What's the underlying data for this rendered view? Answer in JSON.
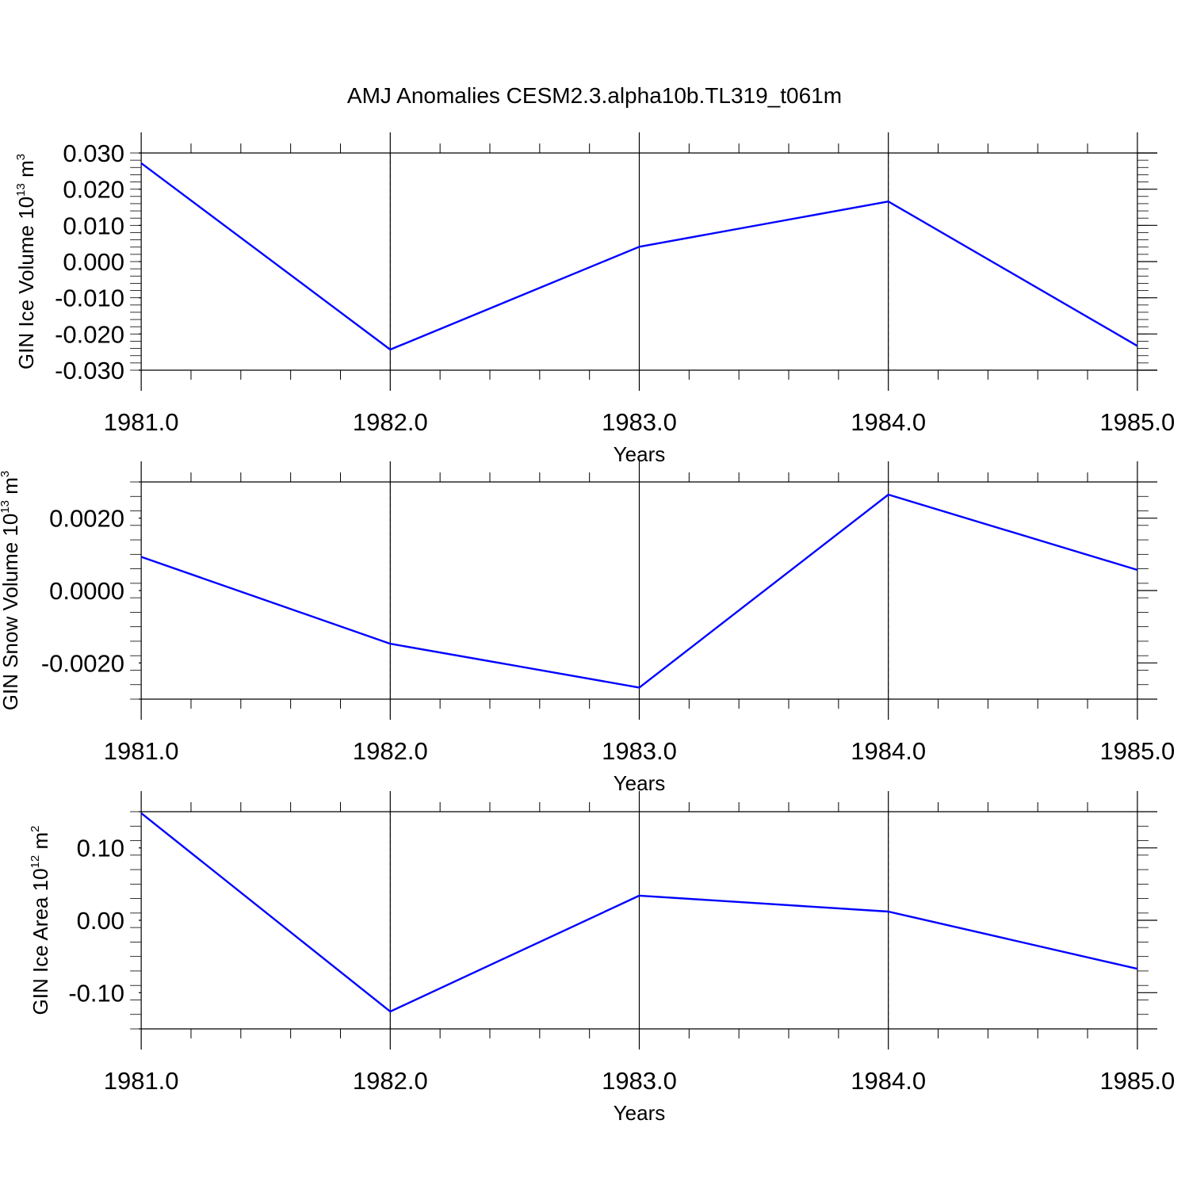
{
  "title": "AMJ Anomalies CESM2.3.alpha10b.TL319_t061m",
  "colors": {
    "series": "#0000ff",
    "axis": "#000000",
    "grid": "#808080"
  },
  "chart_data": [
    {
      "type": "line",
      "title": "",
      "xlabel": "Years",
      "ylabel": {
        "text": "GIN Ice Volume 10",
        "sup": "13",
        "unit": " m",
        "unit_sup": "3"
      },
      "x": [
        1981,
        1982,
        1983,
        1984,
        1985
      ],
      "xlim": [
        1980.99,
        1985.08
      ],
      "xticks": [
        1981,
        1982,
        1983,
        1984,
        1985
      ],
      "xtick_labels": [
        "1981.0",
        "1982.0",
        "1983.0",
        "1984.0",
        "1985.0"
      ],
      "ylim": [
        -0.03,
        0.03
      ],
      "yticks": [
        0.03,
        0.02,
        0.01,
        0.0,
        -0.01,
        -0.02,
        -0.03
      ],
      "ytick_labels": [
        "0.030",
        "0.020",
        "0.010",
        "0.000",
        "-0.010",
        "-0.020",
        "-0.030"
      ],
      "grid": "vertical dashed",
      "series": [
        {
          "values": [
            0.0272,
            -0.0243,
            0.0041,
            0.0166,
            -0.0233
          ]
        }
      ]
    },
    {
      "type": "line",
      "title": "",
      "xlabel": "Years",
      "ylabel": {
        "text": "GIN Snow Volume 10",
        "sup": "13",
        "unit": " m",
        "unit_sup": "3"
      },
      "x": [
        1981,
        1982,
        1983,
        1984,
        1985
      ],
      "xlim": [
        1980.99,
        1985.08
      ],
      "xticks": [
        1981,
        1982,
        1983,
        1984,
        1985
      ],
      "xtick_labels": [
        "1981.0",
        "1982.0",
        "1983.0",
        "1984.0",
        "1985.0"
      ],
      "ylim": [
        -0.003,
        0.003
      ],
      "yticks": [
        0.002,
        0.0,
        -0.002
      ],
      "ytick_labels": [
        "0.0020",
        "0.0000",
        "-0.0020"
      ],
      "grid": "vertical dashed",
      "series": [
        {
          "values": [
            0.00093,
            -0.00147,
            -0.00268,
            0.00265,
            0.00057
          ]
        }
      ]
    },
    {
      "type": "line",
      "title": "",
      "xlabel": "Years",
      "ylabel": {
        "text": "GIN Ice Area 10",
        "sup": "12",
        "unit": " m",
        "unit_sup": "2"
      },
      "x": [
        1981,
        1982,
        1983,
        1984,
        1985
      ],
      "xlim": [
        1980.99,
        1985.08
      ],
      "xticks": [
        1981,
        1982,
        1983,
        1984,
        1985
      ],
      "xtick_labels": [
        "1981.0",
        "1982.0",
        "1983.0",
        "1984.0",
        "1985.0"
      ],
      "ylim": [
        -0.15,
        0.15
      ],
      "yticks": [
        0.1,
        0.0,
        -0.1
      ],
      "ytick_labels": [
        "0.10",
        "0.00",
        "-0.10"
      ],
      "grid": "vertical dashed",
      "series": [
        {
          "values": [
            0.148,
            -0.126,
            0.034,
            0.012,
            -0.067
          ]
        }
      ]
    }
  ]
}
